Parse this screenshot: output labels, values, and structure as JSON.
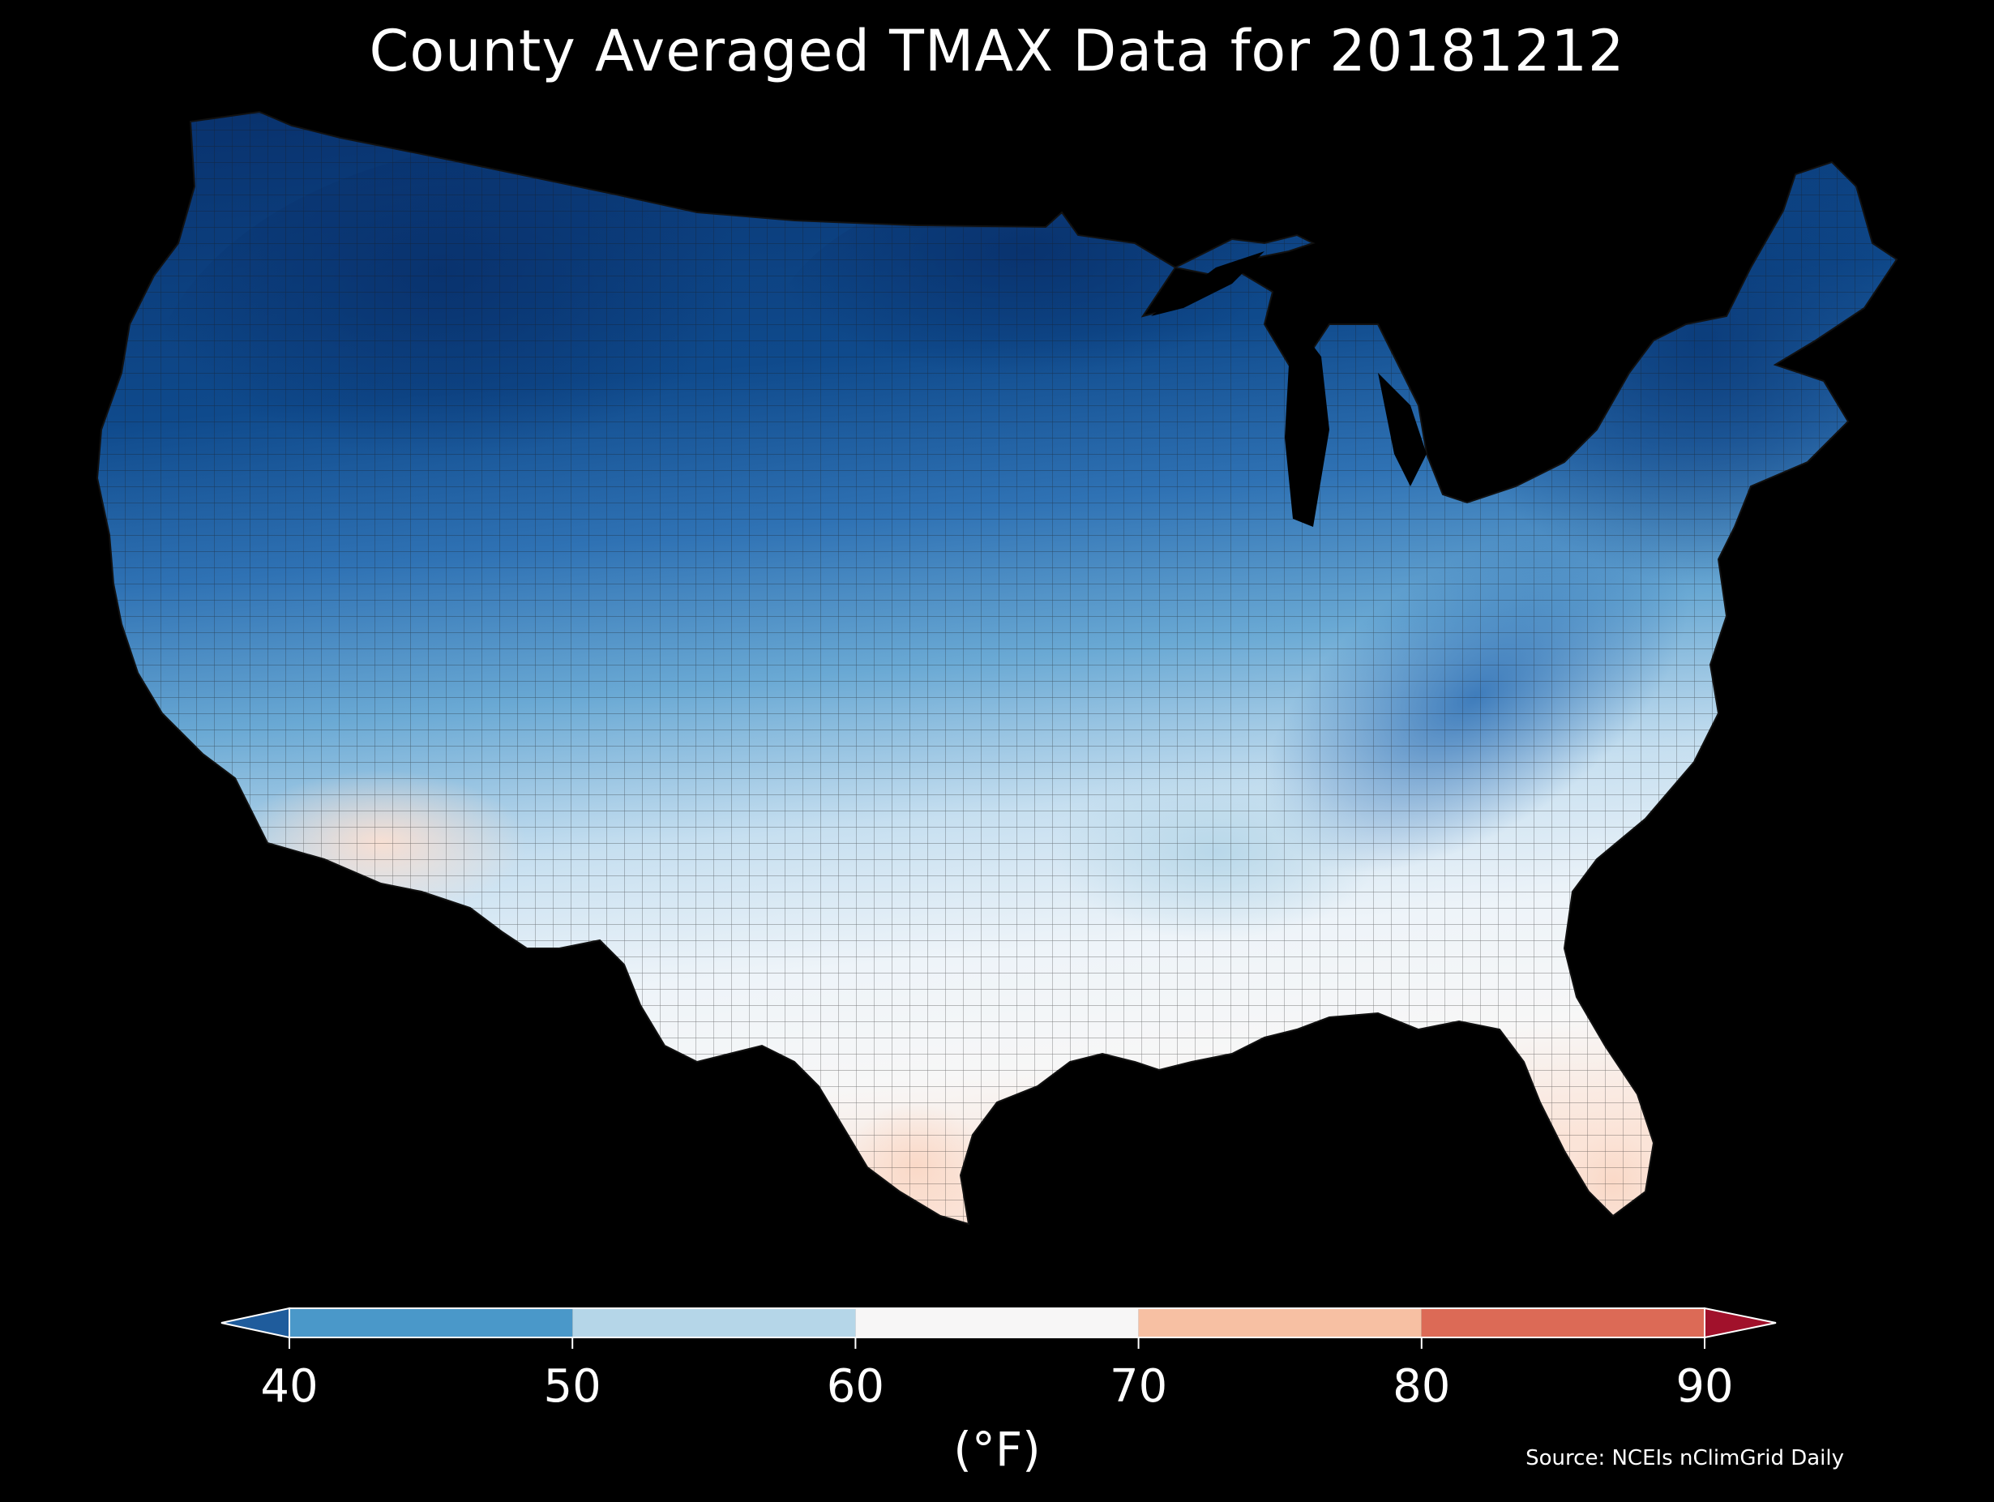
{
  "title": "County Averaged TMAX Data for 20181212",
  "colorbar": {
    "ticks": [
      "40",
      "50",
      "60",
      "70",
      "80",
      "90"
    ],
    "unit": "(°F)",
    "bins": [
      {
        "range": [
          40,
          50
        ],
        "color": "#4a98c9"
      },
      {
        "range": [
          50,
          60
        ],
        "color": "#b5d6e8"
      },
      {
        "range": [
          60,
          70
        ],
        "color": "#f7f6f6"
      },
      {
        "range": [
          70,
          80
        ],
        "color": "#f7c0a3"
      },
      {
        "range": [
          80,
          90
        ],
        "color": "#dc6a56"
      }
    ],
    "under_color": "#1f5c9c",
    "over_color": "#a1112b"
  },
  "source": "Source: NCEIs nClimGrid Daily",
  "map": {
    "region": "Contiguous United States",
    "variable": "TMAX",
    "background_color": "#000000",
    "county_border_color": "#1a1a1a"
  }
}
